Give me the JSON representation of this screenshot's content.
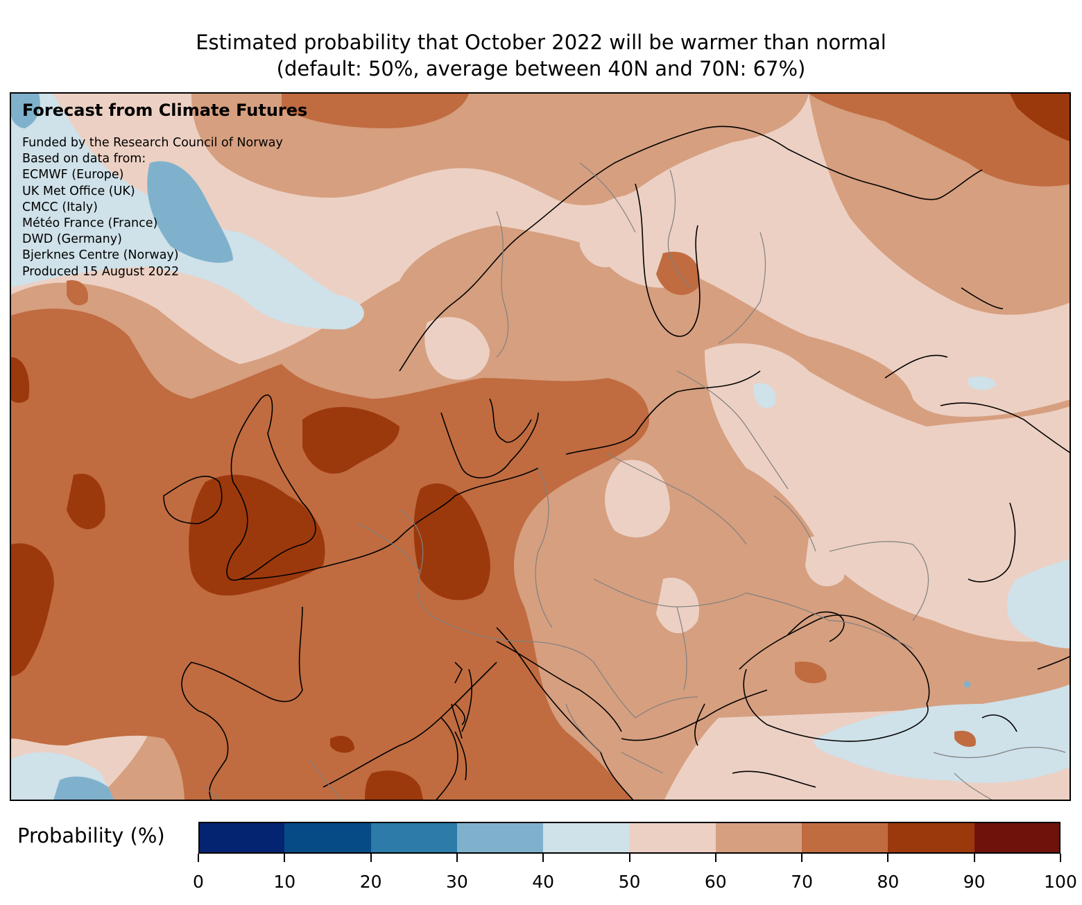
{
  "title_line1": "Estimated probability that October 2022 will be warmer than normal",
  "title_line2": "(default: 50%, average between 40N and 70N: 67%)",
  "credits": {
    "heading": "Forecast from Climate Futures",
    "lines": [
      "Funded by the Research Council of Norway",
      "Based on data from:",
      "ECMWF (Europe)",
      "UK Met Office (UK)",
      "CMCC (Italy)",
      "Météo France (France)",
      "DWD (Germany)",
      "Bjerknes Centre (Norway)",
      "Produced 15 August 2022"
    ]
  },
  "colorbar": {
    "label": "Probability (%)",
    "ticks": [
      "0",
      "10",
      "20",
      "30",
      "40",
      "50",
      "60",
      "70",
      "80",
      "90",
      "100"
    ],
    "colors": [
      "#042472",
      "#064b86",
      "#2c7ba8",
      "#7fb1cc",
      "#cfe1e9",
      "#ecd0c3",
      "#d69f7f",
      "#c06c40",
      "#9c390c",
      "#6e120b"
    ]
  },
  "map": {
    "colors": {
      "c30_40": "#7fb1cc",
      "c40_50": "#cfe1e9",
      "c50_60": "#ecd0c3",
      "c60_70": "#d69f7f",
      "c70_80": "#c06c40",
      "c80_90": "#9c390c",
      "coast": "#000000",
      "border": "#808080"
    }
  }
}
